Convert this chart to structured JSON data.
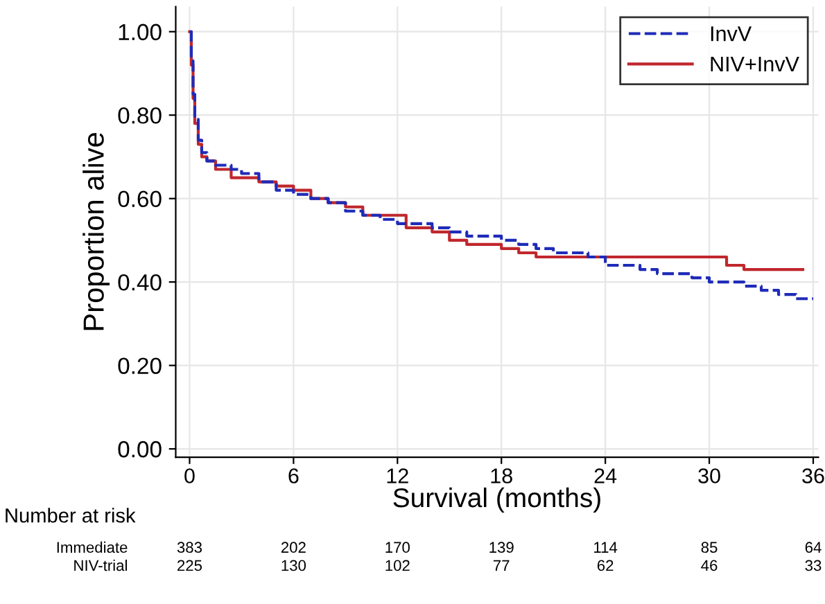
{
  "chart_data": {
    "type": "step",
    "xlabel": "Survival (months)",
    "ylabel": "Proportion alive",
    "xlim": [
      -0.8,
      36.3
    ],
    "ylim": [
      -0.02,
      1.06
    ],
    "xticks": [
      0,
      6,
      12,
      18,
      24,
      30,
      36
    ],
    "yticks": [
      {
        "value": 0,
        "label": "0.00"
      },
      {
        "value": 0.2,
        "label": "0.20"
      },
      {
        "value": 0.4,
        "label": "0.40"
      },
      {
        "value": 0.6,
        "label": "0.60"
      },
      {
        "value": 0.8,
        "label": "0.80"
      },
      {
        "value": 1.0,
        "label": "1.00"
      }
    ],
    "grid": true,
    "legend": "top right",
    "series": [
      {
        "name": "InvV",
        "color": "#1f2bb8",
        "line_style": "dashed",
        "x": [
          0,
          0.1,
          0.2,
          0.3,
          0.5,
          0.7,
          1,
          1.5,
          2.4,
          3,
          4,
          5,
          6,
          7,
          8,
          9,
          10,
          11,
          12,
          13,
          14,
          15,
          16,
          17,
          18,
          19,
          20,
          21,
          22,
          23,
          24,
          25,
          26,
          27,
          28,
          29,
          30,
          31,
          32,
          33,
          34,
          35,
          36
        ],
        "values": [
          1.0,
          0.93,
          0.85,
          0.79,
          0.74,
          0.71,
          0.69,
          0.68,
          0.67,
          0.66,
          0.64,
          0.62,
          0.61,
          0.6,
          0.59,
          0.57,
          0.56,
          0.55,
          0.54,
          0.54,
          0.53,
          0.52,
          0.51,
          0.51,
          0.5,
          0.49,
          0.48,
          0.47,
          0.47,
          0.46,
          0.44,
          0.44,
          0.43,
          0.42,
          0.42,
          0.41,
          0.4,
          0.4,
          0.39,
          0.38,
          0.37,
          0.36,
          0.36
        ]
      },
      {
        "name": "NIV+InvV",
        "color": "#c0272d",
        "line_style": "solid",
        "x": [
          0,
          0.1,
          0.2,
          0.3,
          0.5,
          0.7,
          1,
          1.5,
          2.4,
          3,
          4,
          5,
          6,
          7,
          8,
          9,
          10,
          11,
          12,
          12.5,
          13,
          14,
          15,
          16,
          17,
          18,
          19,
          20,
          21,
          22,
          24,
          26,
          28,
          30,
          31,
          32,
          35.4
        ],
        "values": [
          1.0,
          0.92,
          0.84,
          0.78,
          0.73,
          0.7,
          0.69,
          0.67,
          0.65,
          0.65,
          0.64,
          0.63,
          0.62,
          0.6,
          0.59,
          0.58,
          0.56,
          0.56,
          0.56,
          0.53,
          0.53,
          0.52,
          0.5,
          0.49,
          0.49,
          0.48,
          0.47,
          0.46,
          0.46,
          0.46,
          0.46,
          0.46,
          0.46,
          0.46,
          0.44,
          0.43,
          0.43
        ]
      }
    ],
    "annotations": [
      "Number at risk",
      "Immediate",
      "383",
      "202",
      "170",
      "139",
      "114",
      "85",
      "64",
      "NIV-trial",
      "225",
      "130",
      "102",
      "77",
      "62",
      "46",
      "33"
    ]
  }
}
